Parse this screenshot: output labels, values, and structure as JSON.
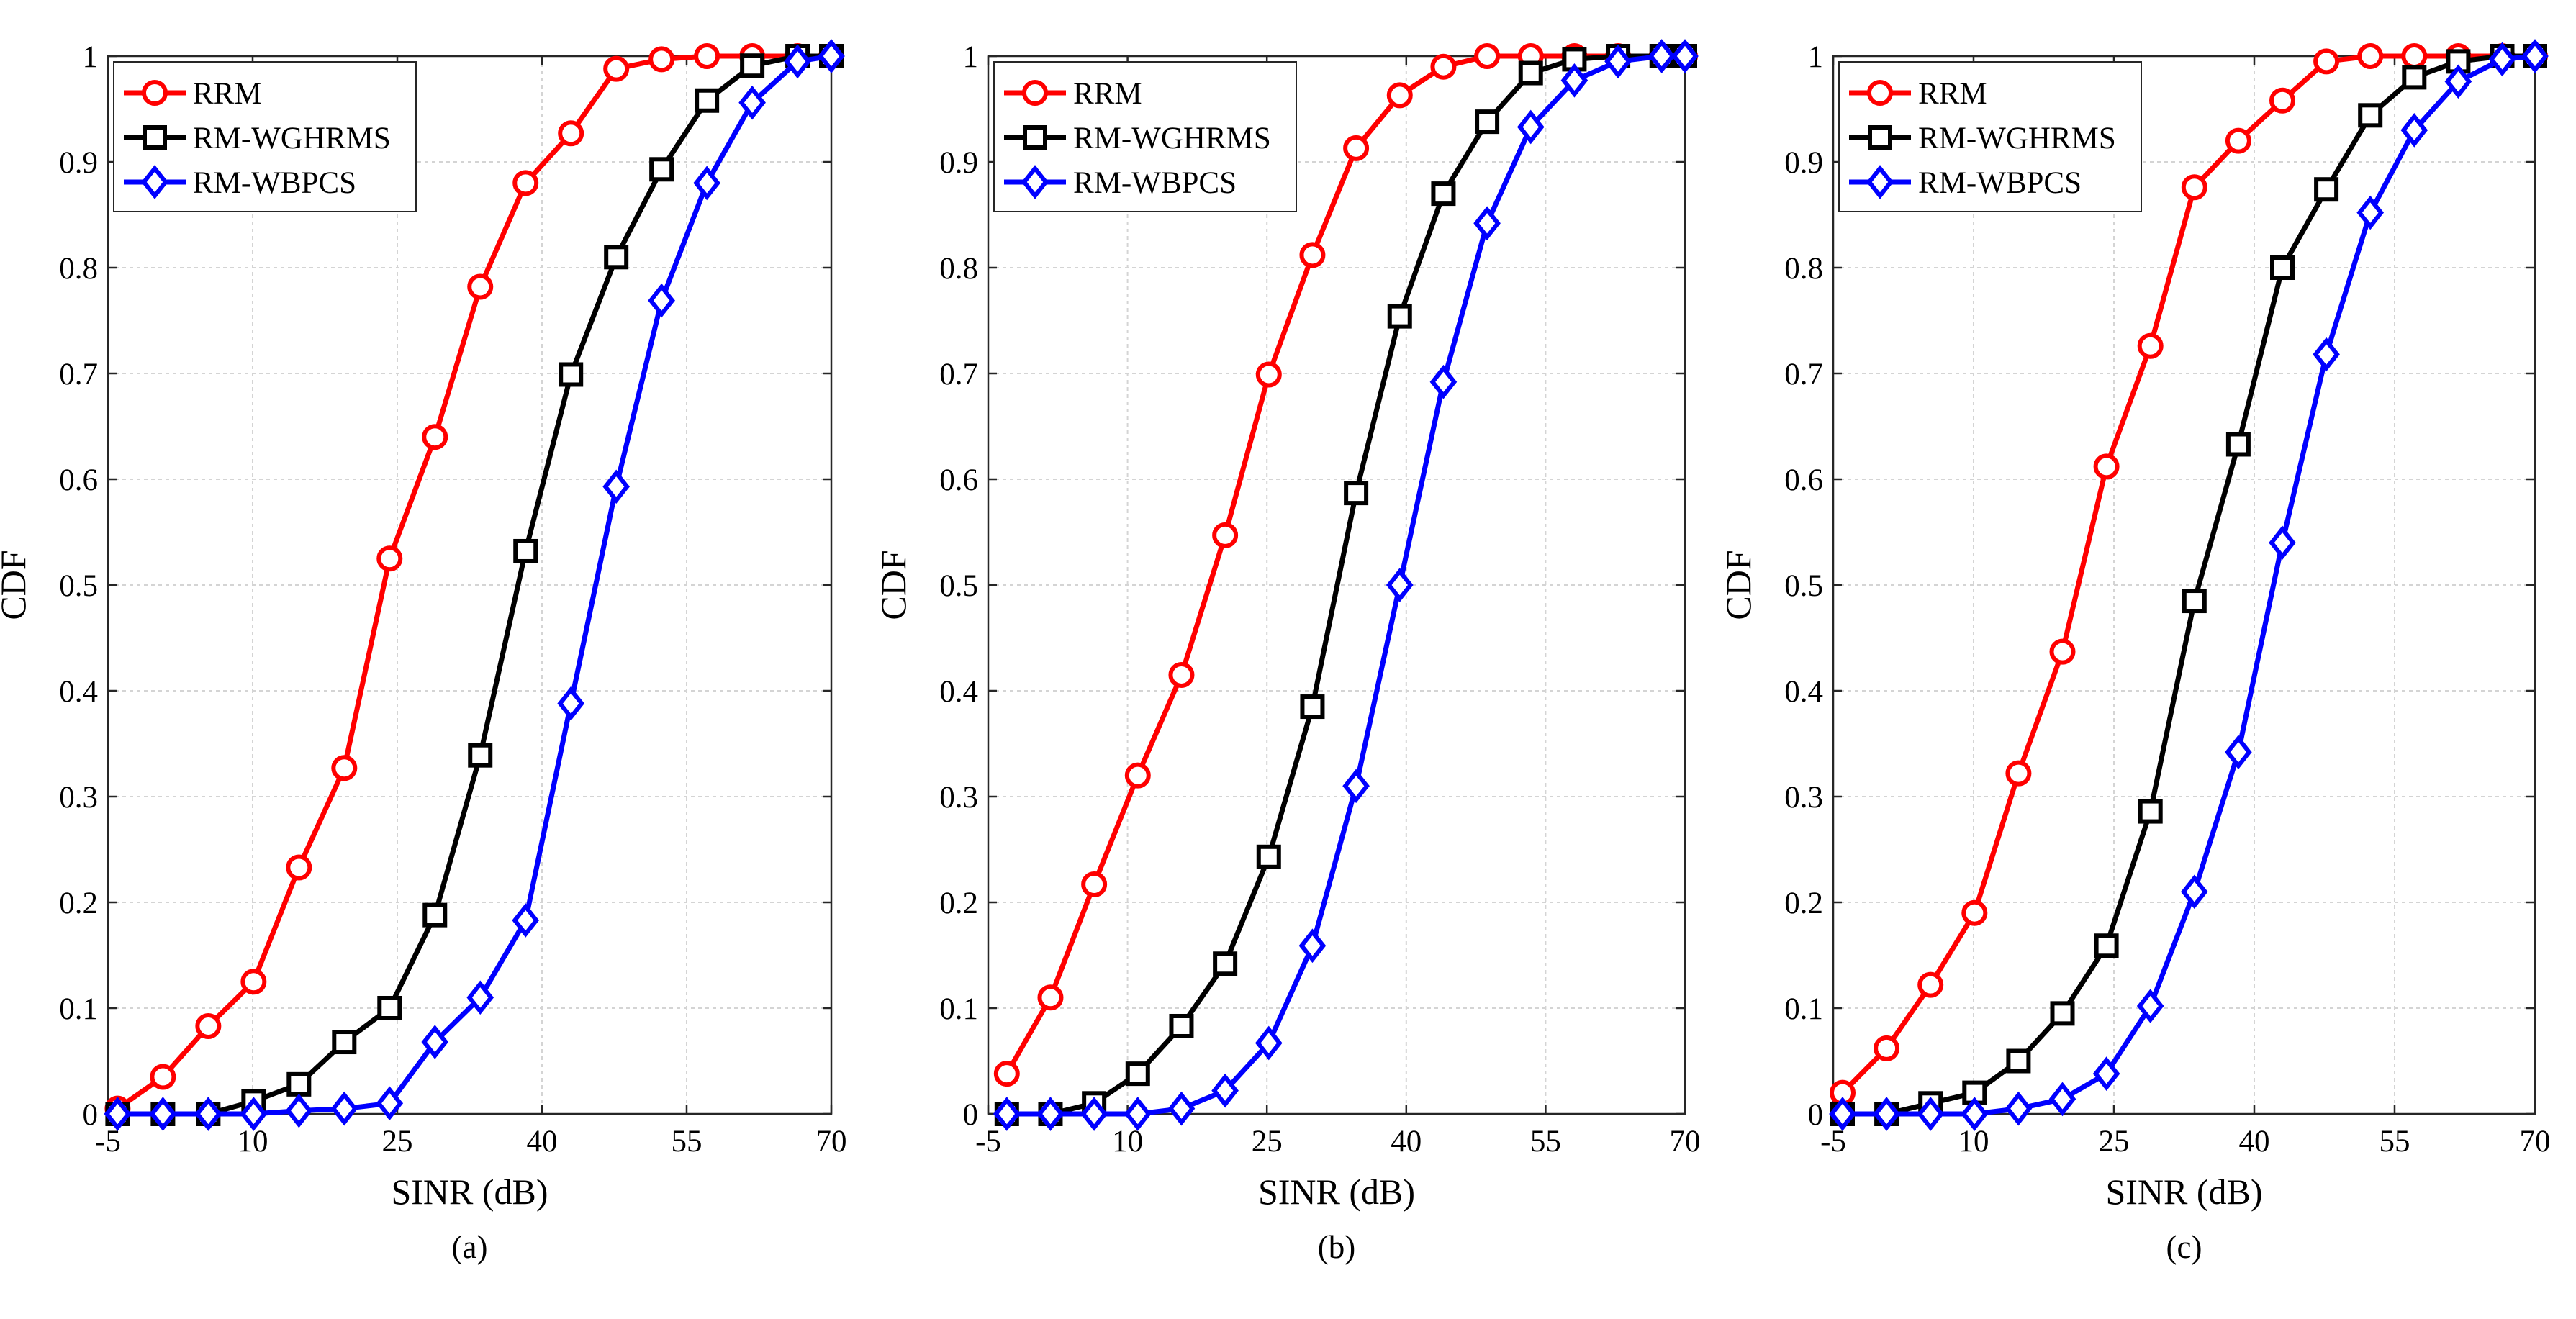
{
  "chart_data": [
    {
      "type": "line",
      "caption": "(a)",
      "xlabel": "SINR (dB)",
      "ylabel": "CDF",
      "xlim": [
        -5,
        70
      ],
      "ylim": [
        0,
        1
      ],
      "xticks": [
        -5,
        10,
        25,
        40,
        55,
        70
      ],
      "yticks": [
        0,
        0.1,
        0.2,
        0.3,
        0.4,
        0.5,
        0.6,
        0.7,
        0.8,
        0.9,
        1
      ],
      "legend": "top-left",
      "grid": true,
      "x": [
        -4,
        0.7,
        5.4,
        10.1,
        14.8,
        19.5,
        24.2,
        28.9,
        33.6,
        38.3,
        43,
        47.7,
        52.4,
        57.1,
        61.8,
        66.5,
        70
      ],
      "series": [
        {
          "name": "RRM",
          "color": "#ff0000",
          "marker": "circle",
          "values": [
            0.005,
            0.035,
            0.083,
            0.125,
            0.233,
            0.327,
            0.525,
            0.64,
            0.782,
            0.88,
            0.927,
            0.988,
            0.997,
            1,
            1,
            1,
            1
          ]
        },
        {
          "name": "RM-WGHRMS",
          "color": "#000000",
          "marker": "square",
          "values": [
            0,
            0,
            0,
            0.012,
            0.028,
            0.068,
            0.1,
            0.188,
            0.339,
            0.532,
            0.699,
            0.81,
            0.893,
            0.958,
            0.991,
            1,
            1
          ]
        },
        {
          "name": "RM-WBPCS",
          "color": "#0000ff",
          "marker": "diamond",
          "values": [
            0,
            0,
            0,
            0,
            0.003,
            0.005,
            0.01,
            0.068,
            0.11,
            0.183,
            0.388,
            0.593,
            0.769,
            0.88,
            0.956,
            0.995,
            1
          ]
        }
      ]
    },
    {
      "type": "line",
      "caption": "(b)",
      "xlabel": "SINR (dB)",
      "ylabel": "CDF",
      "xlim": [
        -5,
        70
      ],
      "ylim": [
        0,
        1
      ],
      "xticks": [
        -5,
        10,
        25,
        40,
        55,
        70
      ],
      "yticks": [
        0,
        0.1,
        0.2,
        0.3,
        0.4,
        0.5,
        0.6,
        0.7,
        0.8,
        0.9,
        1
      ],
      "legend": "top-left",
      "grid": true,
      "x": [
        -3,
        1.7,
        6.4,
        11.1,
        15.8,
        20.5,
        25.2,
        29.9,
        34.6,
        39.3,
        44,
        48.7,
        53.4,
        58.1,
        62.8,
        67.5,
        70
      ],
      "series": [
        {
          "name": "RRM",
          "color": "#ff0000",
          "marker": "circle",
          "values": [
            0.038,
            0.11,
            0.217,
            0.32,
            0.415,
            0.547,
            0.699,
            0.812,
            0.913,
            0.963,
            0.99,
            1,
            1,
            1,
            1,
            1,
            1
          ]
        },
        {
          "name": "RM-WGHRMS",
          "color": "#000000",
          "marker": "square",
          "values": [
            0,
            0,
            0.01,
            0.038,
            0.083,
            0.142,
            0.243,
            0.385,
            0.587,
            0.754,
            0.87,
            0.938,
            0.984,
            0.997,
            1,
            1,
            1
          ]
        },
        {
          "name": "RM-WBPCS",
          "color": "#0000ff",
          "marker": "diamond",
          "values": [
            0,
            0,
            0,
            0,
            0.005,
            0.022,
            0.067,
            0.159,
            0.31,
            0.5,
            0.692,
            0.842,
            0.933,
            0.977,
            0.995,
            1,
            1
          ]
        }
      ]
    },
    {
      "type": "line",
      "caption": "(c)",
      "xlabel": "SINR (dB)",
      "ylabel": "CDF",
      "xlim": [
        -5,
        70
      ],
      "ylim": [
        0,
        1
      ],
      "xticks": [
        -5,
        10,
        25,
        40,
        55,
        70
      ],
      "yticks": [
        0,
        0.1,
        0.2,
        0.3,
        0.4,
        0.5,
        0.6,
        0.7,
        0.8,
        0.9,
        1
      ],
      "legend": "top-left",
      "grid": true,
      "x": [
        -4,
        0.7,
        5.4,
        10.1,
        14.8,
        19.5,
        24.2,
        28.9,
        33.6,
        38.3,
        43,
        47.7,
        52.4,
        57.1,
        61.8,
        66.5,
        70
      ],
      "series": [
        {
          "name": "RRM",
          "color": "#ff0000",
          "marker": "circle",
          "values": [
            0.02,
            0.062,
            0.122,
            0.19,
            0.322,
            0.437,
            0.612,
            0.726,
            0.876,
            0.92,
            0.958,
            0.995,
            1,
            1,
            1,
            1,
            1
          ]
        },
        {
          "name": "RM-WGHRMS",
          "color": "#000000",
          "marker": "square",
          "values": [
            0,
            0,
            0.01,
            0.02,
            0.05,
            0.095,
            0.159,
            0.286,
            0.485,
            0.633,
            0.8,
            0.874,
            0.944,
            0.98,
            0.995,
            1,
            1
          ]
        },
        {
          "name": "RM-WBPCS",
          "color": "#0000ff",
          "marker": "diamond",
          "values": [
            0,
            0,
            0,
            0,
            0.005,
            0.014,
            0.038,
            0.102,
            0.21,
            0.342,
            0.54,
            0.718,
            0.852,
            0.93,
            0.976,
            0.997,
            1
          ]
        }
      ]
    }
  ]
}
